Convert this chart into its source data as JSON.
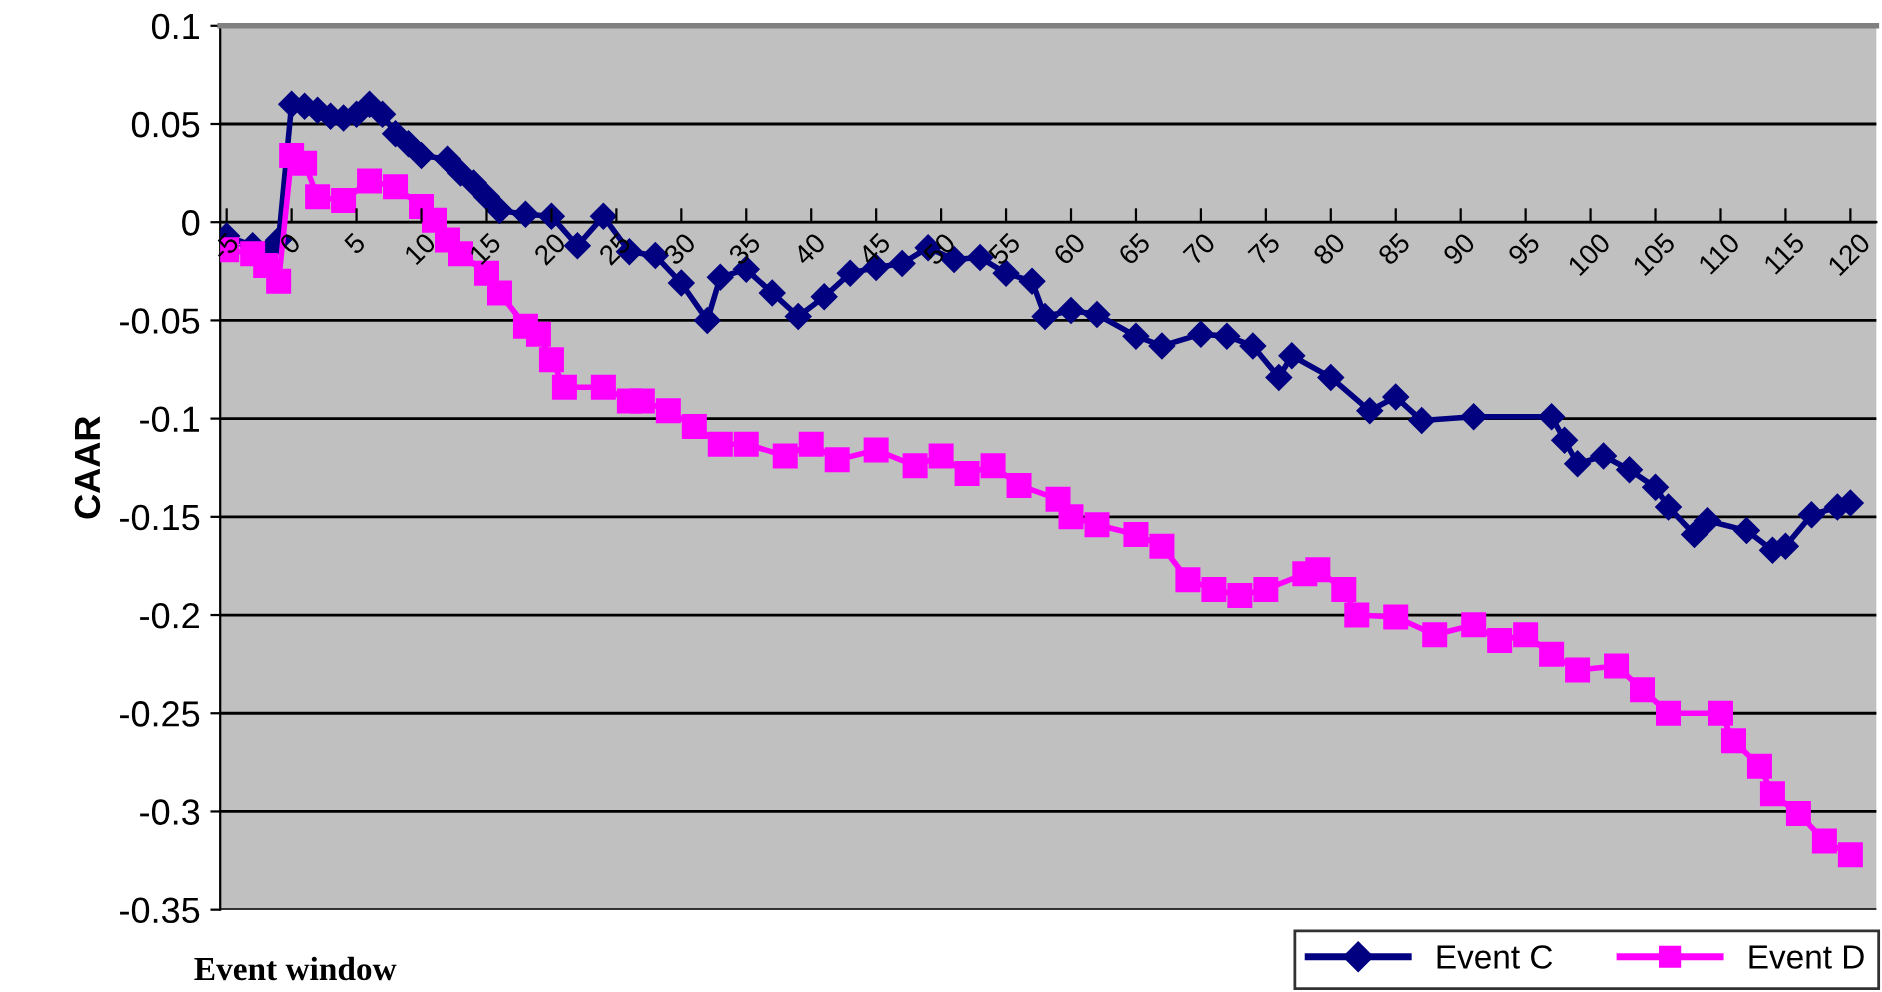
{
  "chart_data": {
    "type": "line",
    "xlabel": "Event window",
    "ylabel": "CAAR",
    "xlim": [
      -5.5,
      122
    ],
    "ylim": [
      -0.35,
      0.1
    ],
    "xticks": [
      -5,
      0,
      5,
      10,
      15,
      20,
      25,
      30,
      35,
      40,
      45,
      50,
      55,
      60,
      65,
      70,
      75,
      80,
      85,
      90,
      95,
      100,
      105,
      110,
      115,
      120
    ],
    "yticks": [
      -0.35,
      -0.3,
      -0.25,
      -0.2,
      -0.15,
      -0.1,
      -0.05,
      0,
      0.05,
      0.1
    ],
    "grid": "y",
    "legend": "bottom right",
    "line_style": "solid",
    "series": [
      {
        "name": "Event C",
        "color": "#000080",
        "marker": "diamond",
        "x": [
          -5,
          -3,
          -2,
          -1,
          0,
          1,
          2,
          3,
          4,
          5,
          6,
          7,
          8,
          9,
          10,
          12,
          13,
          14,
          15,
          16,
          18,
          20,
          22,
          24,
          26,
          28,
          30,
          32,
          33,
          35,
          37,
          39,
          41,
          43,
          45,
          47,
          49,
          51,
          53,
          55,
          57,
          58,
          60,
          62,
          65,
          67,
          70,
          72,
          74,
          76,
          77,
          80,
          83,
          85,
          87,
          91,
          97,
          98,
          99,
          101,
          103,
          105,
          106,
          108,
          109,
          112,
          114,
          115,
          117,
          119,
          120
        ],
        "values": [
          -0.007,
          -0.012,
          -0.016,
          -0.009,
          0.06,
          0.059,
          0.057,
          0.054,
          0.053,
          0.055,
          0.06,
          0.055,
          0.045,
          0.04,
          0.034,
          0.032,
          0.025,
          0.02,
          0.013,
          0.006,
          0.004,
          0.003,
          -0.012,
          0.003,
          -0.015,
          -0.017,
          -0.031,
          -0.05,
          -0.028,
          -0.024,
          -0.036,
          -0.048,
          -0.038,
          -0.026,
          -0.023,
          -0.021,
          -0.013,
          -0.019,
          -0.018,
          -0.026,
          -0.03,
          -0.048,
          -0.045,
          -0.047,
          -0.058,
          -0.063,
          -0.057,
          -0.058,
          -0.063,
          -0.079,
          -0.068,
          -0.079,
          -0.096,
          -0.089,
          -0.101,
          -0.099,
          -0.099,
          -0.111,
          -0.123,
          -0.119,
          -0.126,
          -0.135,
          -0.145,
          -0.159,
          -0.152,
          -0.157,
          -0.167,
          -0.165,
          -0.149,
          -0.145,
          -0.143
        ]
      },
      {
        "name": "Event D",
        "color": "#ff00ff",
        "marker": "square",
        "x": [
          -5,
          -3,
          -2,
          -1,
          0,
          1,
          2,
          4,
          6,
          8,
          10,
          11,
          12,
          13,
          15,
          16,
          18,
          19,
          20,
          21,
          24,
          26,
          27,
          29,
          31,
          33,
          35,
          38,
          40,
          42,
          45,
          48,
          50,
          52,
          54,
          56,
          59,
          60,
          62,
          65,
          67,
          69,
          71,
          73,
          75,
          78,
          79,
          81,
          82,
          85,
          88,
          91,
          93,
          95,
          97,
          99,
          102,
          104,
          106,
          110,
          111,
          113,
          114,
          116,
          118,
          120
        ],
        "values": [
          -0.014,
          -0.016,
          -0.022,
          -0.03,
          0.034,
          0.03,
          0.013,
          0.011,
          0.021,
          0.018,
          0.008,
          0.001,
          -0.009,
          -0.016,
          -0.026,
          -0.036,
          -0.053,
          -0.057,
          -0.07,
          -0.084,
          -0.084,
          -0.091,
          -0.091,
          -0.096,
          -0.104,
          -0.113,
          -0.113,
          -0.119,
          -0.113,
          -0.121,
          -0.116,
          -0.124,
          -0.119,
          -0.128,
          -0.124,
          -0.134,
          -0.141,
          -0.15,
          -0.154,
          -0.159,
          -0.165,
          -0.182,
          -0.187,
          -0.19,
          -0.187,
          -0.179,
          -0.177,
          -0.187,
          -0.2,
          -0.201,
          -0.21,
          -0.205,
          -0.213,
          -0.21,
          -0.22,
          -0.228,
          -0.226,
          -0.238,
          -0.25,
          -0.25,
          -0.264,
          -0.277,
          -0.291,
          -0.301,
          -0.315,
          -0.322
        ]
      }
    ]
  }
}
